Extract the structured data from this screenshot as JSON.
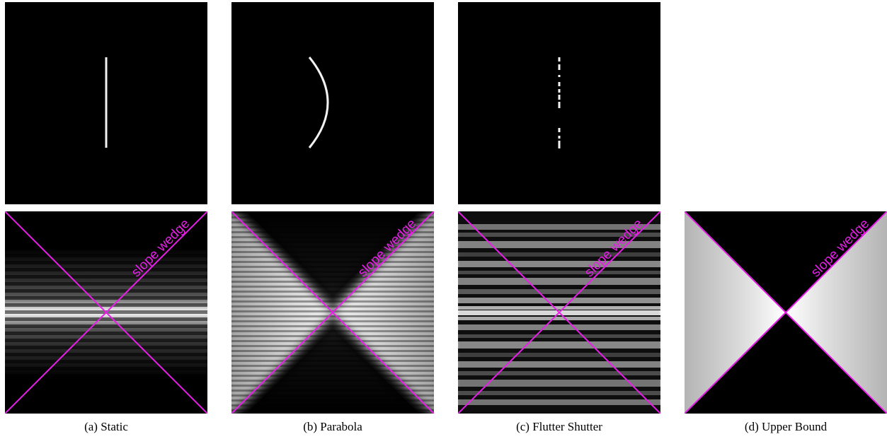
{
  "figure": {
    "wedge_label": "slope wedge",
    "wedge_color": "#e81ee8",
    "captions": {
      "a": "(a) Static",
      "b": "(b) Parabola",
      "c": "(c) Flutter Shutter",
      "d": "(d) Upper Bound"
    }
  }
}
